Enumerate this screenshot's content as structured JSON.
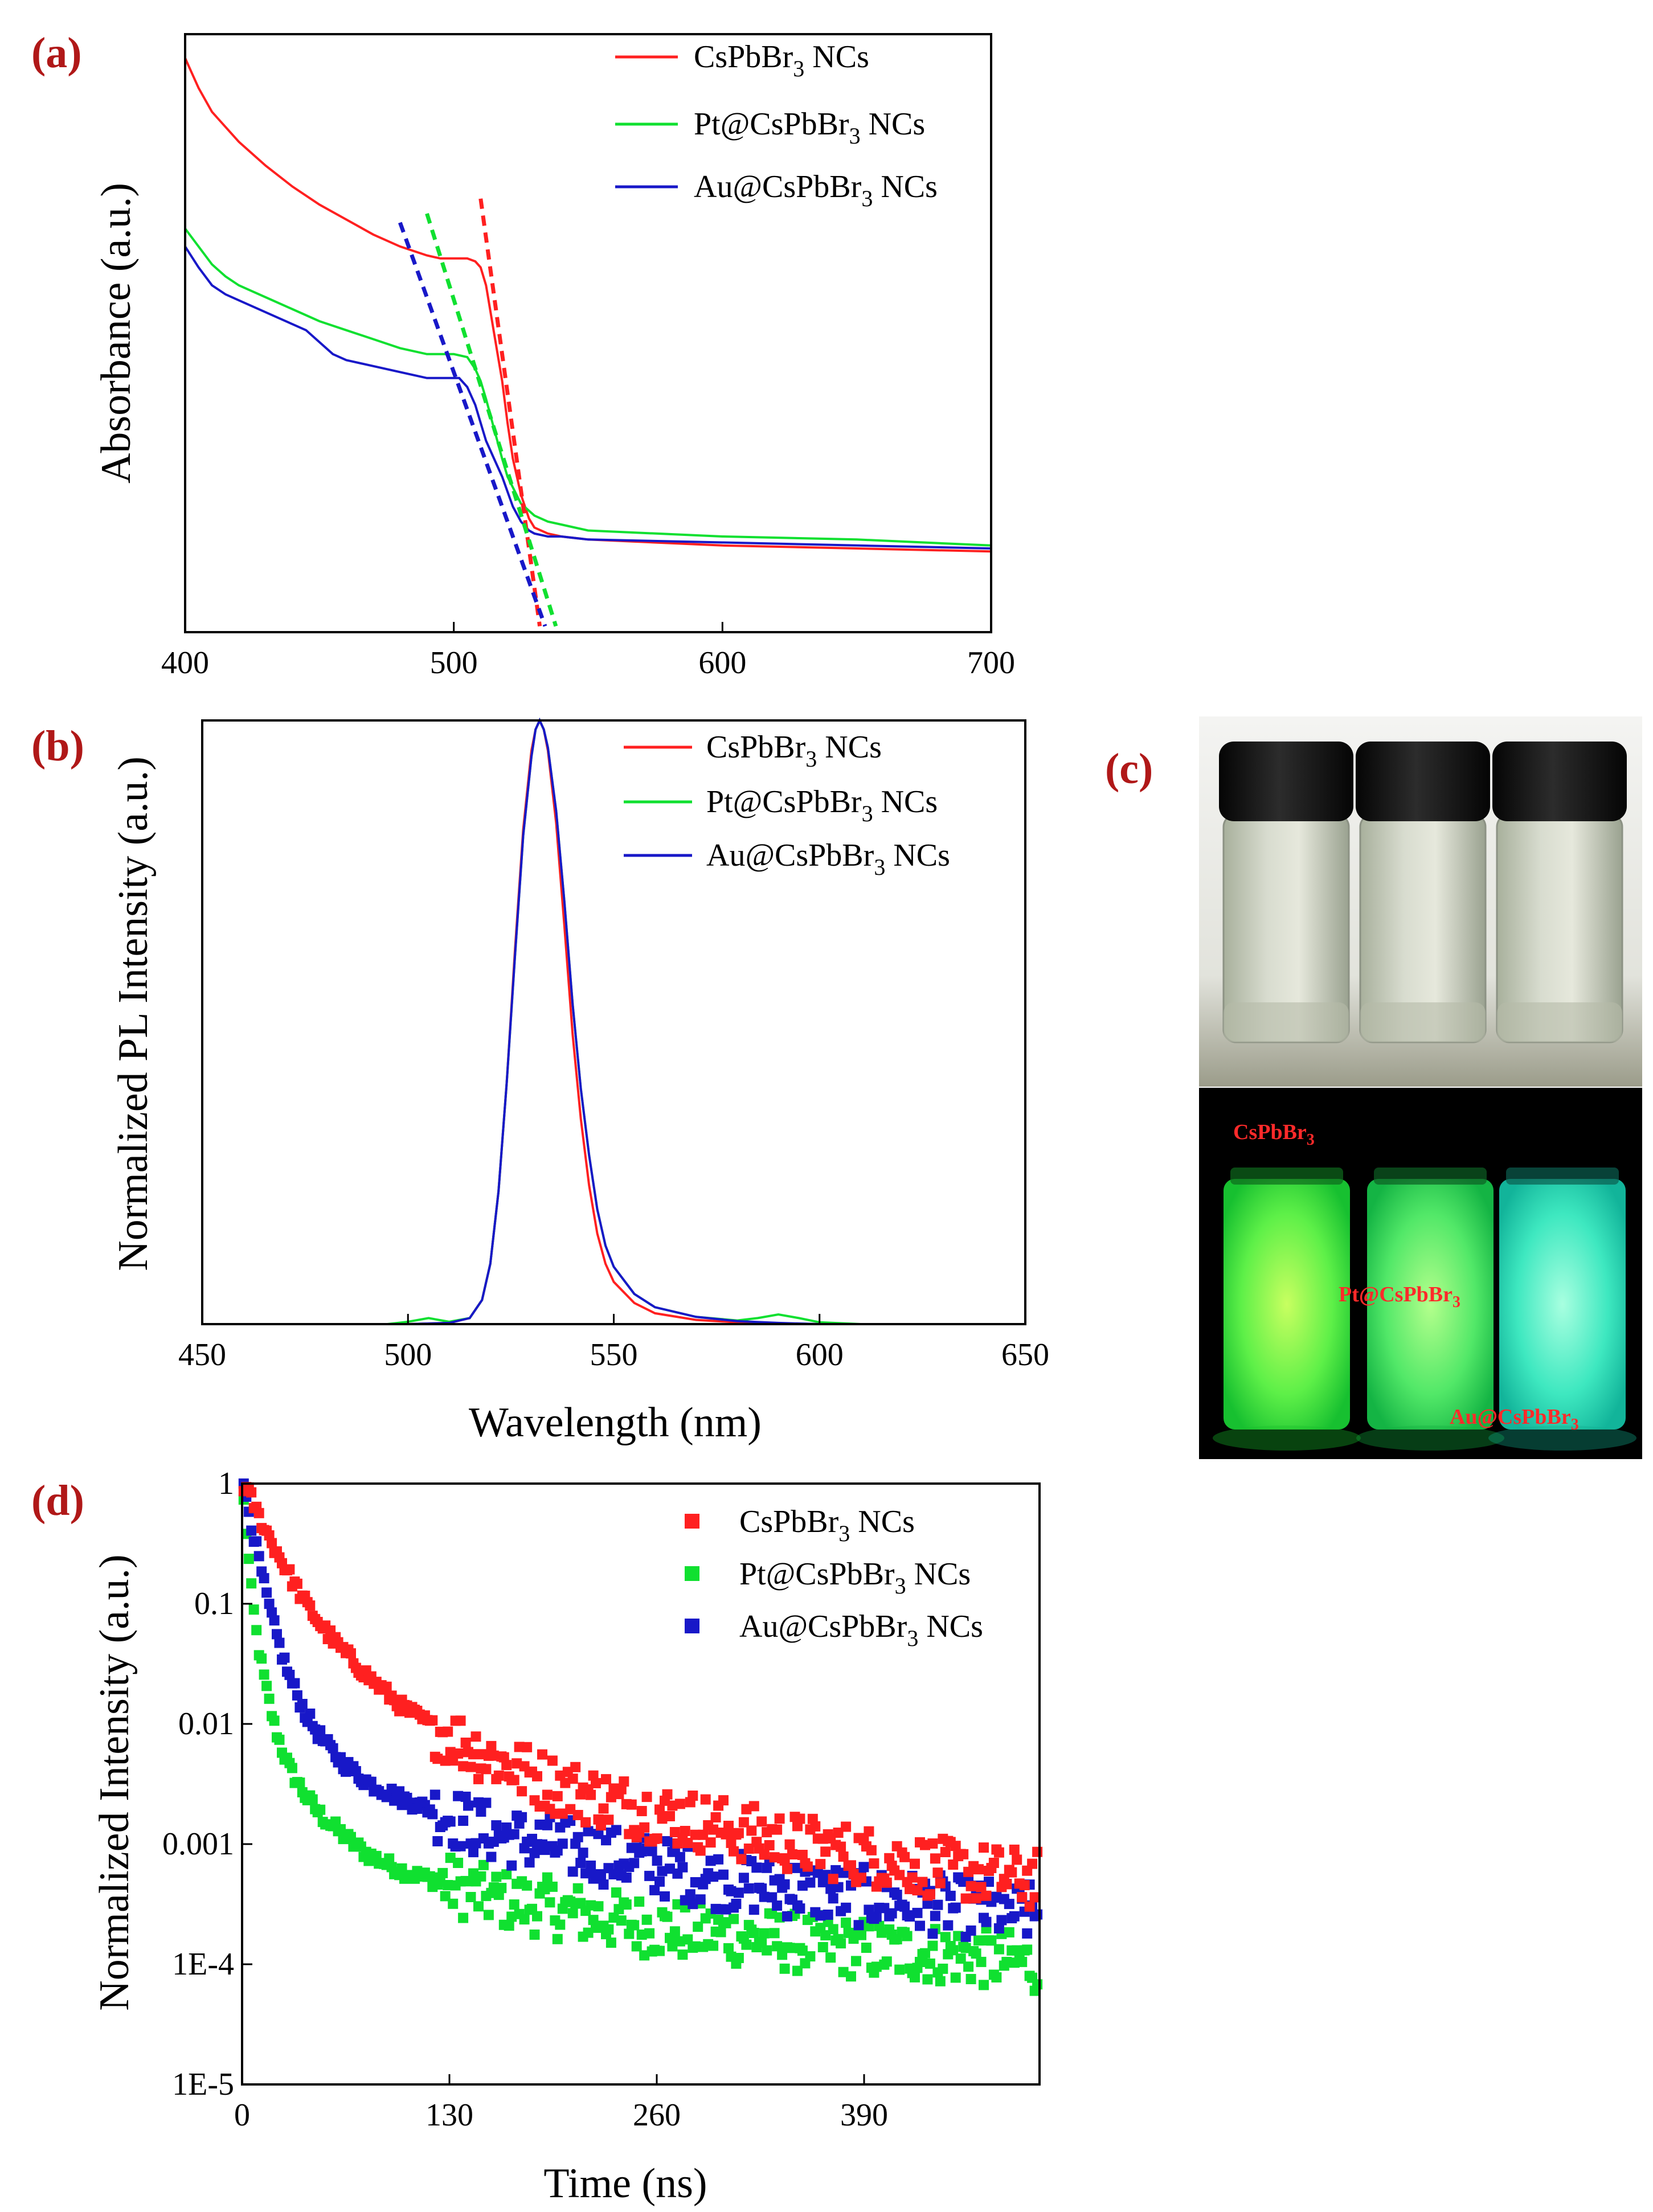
{
  "colors": {
    "red": "#ff2020",
    "green": "#10e030",
    "blue": "#1818c8",
    "panel_label": "#b01818"
  },
  "panels": {
    "a": "(a)",
    "b": "(b)",
    "c": "(c)",
    "d": "(d)"
  },
  "chart_data": [
    {
      "id": "a",
      "type": "line",
      "title": "",
      "xlabel": "",
      "ylabel": "Absorbance (a.u.)",
      "xlim": [
        400,
        700
      ],
      "ylim": [
        0,
        1
      ],
      "xticks": [
        "400",
        "500",
        "600",
        "700"
      ],
      "series": [
        {
          "name": "CsPbBr3 NCs",
          "color": "red",
          "x": [
            400,
            405,
            410,
            420,
            430,
            440,
            450,
            460,
            470,
            480,
            490,
            495,
            500,
            505,
            508,
            510,
            512,
            515,
            518,
            520,
            522,
            525,
            528,
            530,
            535,
            540,
            550,
            600,
            650,
            700
          ],
          "y": [
            0.96,
            0.91,
            0.87,
            0.82,
            0.78,
            0.745,
            0.715,
            0.69,
            0.665,
            0.645,
            0.63,
            0.625,
            0.625,
            0.625,
            0.62,
            0.61,
            0.58,
            0.5,
            0.42,
            0.35,
            0.29,
            0.23,
            0.19,
            0.175,
            0.165,
            0.16,
            0.155,
            0.145,
            0.14,
            0.135
          ]
        },
        {
          "name": "Pt@CsPbBr3 NCs",
          "color": "green",
          "x": [
            400,
            405,
            410,
            415,
            420,
            430,
            440,
            450,
            460,
            470,
            480,
            490,
            500,
            505,
            508,
            510,
            512,
            515,
            518,
            520,
            525,
            530,
            535,
            540,
            550,
            600,
            650,
            700
          ],
          "y": [
            0.675,
            0.645,
            0.615,
            0.595,
            0.58,
            0.56,
            0.54,
            0.52,
            0.505,
            0.49,
            0.475,
            0.465,
            0.465,
            0.46,
            0.44,
            0.42,
            0.39,
            0.34,
            0.29,
            0.26,
            0.215,
            0.195,
            0.185,
            0.18,
            0.17,
            0.16,
            0.155,
            0.145
          ]
        },
        {
          "name": "Au@CsPbBr3 NCs",
          "color": "blue",
          "x": [
            400,
            405,
            410,
            415,
            420,
            425,
            430,
            435,
            440,
            445,
            450,
            455,
            460,
            470,
            480,
            490,
            495,
            500,
            502,
            505,
            508,
            510,
            512,
            515,
            518,
            520,
            522,
            525,
            528,
            530,
            535,
            540,
            550,
            600,
            650,
            700
          ],
          "y": [
            0.645,
            0.61,
            0.58,
            0.565,
            0.555,
            0.545,
            0.535,
            0.525,
            0.515,
            0.505,
            0.485,
            0.465,
            0.455,
            0.445,
            0.435,
            0.425,
            0.425,
            0.425,
            0.425,
            0.41,
            0.38,
            0.35,
            0.32,
            0.29,
            0.26,
            0.235,
            0.21,
            0.185,
            0.17,
            0.165,
            0.16,
            0.16,
            0.155,
            0.15,
            0.145,
            0.14
          ]
        }
      ],
      "tangents": [
        {
          "color": "red",
          "x1": 510,
          "y1": 0.725,
          "x2": 532,
          "y2": 0.01
        },
        {
          "color": "green",
          "x1": 490,
          "y1": 0.7,
          "x2": 538,
          "y2": 0.01
        },
        {
          "color": "blue",
          "x1": 480,
          "y1": 0.685,
          "x2": 534,
          "y2": 0.01
        }
      ]
    },
    {
      "id": "b",
      "type": "line",
      "title": "",
      "xlabel": "Wavelength (nm)",
      "ylabel": "Normalized PL Intensity (a.u.)",
      "xlim": [
        450,
        650
      ],
      "ylim": [
        0,
        1
      ],
      "xticks": [
        "450",
        "500",
        "550",
        "600",
        "650"
      ],
      "series": [
        {
          "name": "CsPbBr3 NCs",
          "color": "red",
          "x": [
            450,
            500,
            510,
            515,
            518,
            520,
            522,
            524,
            526,
            528,
            530,
            531,
            532,
            533,
            534,
            536,
            538,
            540,
            542,
            544,
            546,
            548,
            550,
            555,
            560,
            570,
            580,
            590,
            600,
            650
          ],
          "y": [
            0,
            0,
            0.002,
            0.01,
            0.04,
            0.1,
            0.22,
            0.4,
            0.62,
            0.82,
            0.95,
            0.985,
            1.0,
            0.985,
            0.95,
            0.83,
            0.66,
            0.48,
            0.34,
            0.23,
            0.15,
            0.1,
            0.07,
            0.035,
            0.018,
            0.007,
            0.003,
            0.001,
            0,
            0
          ]
        },
        {
          "name": "Pt@CsPbBr3 NCs",
          "color": "green",
          "x": [
            450,
            495,
            500,
            505,
            510,
            515,
            518,
            520,
            522,
            524,
            526,
            528,
            530,
            531,
            532,
            533,
            534,
            536,
            538,
            540,
            542,
            544,
            546,
            548,
            550,
            555,
            560,
            570,
            580,
            585,
            590,
            595,
            600,
            610,
            650
          ],
          "y": [
            0,
            0,
            0.004,
            0.01,
            0.004,
            0.01,
            0.04,
            0.1,
            0.22,
            0.4,
            0.61,
            0.81,
            0.94,
            0.985,
            1.0,
            0.985,
            0.955,
            0.85,
            0.7,
            0.53,
            0.39,
            0.28,
            0.19,
            0.13,
            0.095,
            0.05,
            0.028,
            0.012,
            0.006,
            0.01,
            0.016,
            0.01,
            0.003,
            0,
            0
          ]
        },
        {
          "name": "Au@CsPbBr3 NCs",
          "color": "blue",
          "x": [
            450,
            500,
            510,
            515,
            518,
            520,
            522,
            524,
            526,
            528,
            530,
            531,
            532,
            533,
            534,
            536,
            538,
            540,
            542,
            544,
            546,
            548,
            550,
            555,
            560,
            570,
            580,
            590,
            600,
            650
          ],
          "y": [
            0,
            0,
            0.002,
            0.01,
            0.04,
            0.1,
            0.22,
            0.4,
            0.61,
            0.81,
            0.94,
            0.985,
            1.0,
            0.985,
            0.955,
            0.85,
            0.7,
            0.53,
            0.39,
            0.28,
            0.19,
            0.13,
            0.095,
            0.05,
            0.028,
            0.012,
            0.005,
            0.002,
            0,
            0
          ]
        }
      ]
    },
    {
      "id": "d",
      "type": "scatter",
      "title": "",
      "xlabel": "Time (ns)",
      "ylabel": "Normalized Intensity (a.u.)",
      "xlim": [
        0,
        500
      ],
      "yscale": "log",
      "ylim": [
        1e-05,
        1
      ],
      "xticks": [
        "0",
        "130",
        "260",
        "390"
      ],
      "yticks": [
        "1E-5",
        "1E-4",
        "0.001",
        "0.01",
        "0.1",
        "1"
      ],
      "series": [
        {
          "name": "CsPbBr3 NCs",
          "color": "red",
          "t": [
            0,
            5,
            10,
            20,
            30,
            40,
            50,
            60,
            80,
            100,
            120,
            140,
            160,
            180,
            200,
            230,
            260,
            290,
            320,
            350,
            390,
            430,
            470,
            500
          ],
          "y": [
            1,
            0.8,
            0.55,
            0.3,
            0.17,
            0.1,
            0.065,
            0.045,
            0.024,
            0.014,
            0.0095,
            0.0068,
            0.005,
            0.0038,
            0.003,
            0.0023,
            0.0018,
            0.0015,
            0.0012,
            0.001,
            0.0008,
            0.00065,
            0.00055,
            0.0005
          ]
        },
        {
          "name": "Pt@CsPbBr3 NCs",
          "color": "green",
          "t": [
            0,
            3,
            6,
            10,
            15,
            20,
            25,
            30,
            40,
            50,
            60,
            70,
            80,
            100,
            120,
            140,
            160,
            190,
            220,
            260,
            300,
            350,
            400,
            450,
            500
          ],
          "y": [
            1,
            0.35,
            0.12,
            0.045,
            0.02,
            0.01,
            0.0062,
            0.0042,
            0.0025,
            0.0017,
            0.0013,
            0.001,
            0.0008,
            0.0006,
            0.0005,
            0.00042,
            0.00035,
            0.0003,
            0.00025,
            0.0002,
            0.00018,
            0.00015,
            0.00013,
            0.00012,
            0.0001
          ]
        },
        {
          "name": "Au@CsPbBr3 NCs",
          "color": "blue",
          "t": [
            0,
            3,
            6,
            10,
            15,
            20,
            25,
            30,
            40,
            50,
            60,
            70,
            80,
            100,
            120,
            140,
            160,
            190,
            220,
            260,
            300,
            350,
            400,
            450,
            500
          ],
          "y": [
            1,
            0.75,
            0.45,
            0.25,
            0.12,
            0.065,
            0.038,
            0.024,
            0.012,
            0.0075,
            0.0052,
            0.004,
            0.0032,
            0.0024,
            0.0019,
            0.0015,
            0.0012,
            0.001,
            0.00085,
            0.00065,
            0.0005,
            0.00042,
            0.00035,
            0.0003,
            0.00026
          ]
        }
      ]
    }
  ],
  "legend": {
    "items": [
      {
        "prefix": "CsPbBr",
        "sub": "3",
        "suffix": " NCs"
      },
      {
        "prefix": "Pt@CsPbBr",
        "sub": "3",
        "suffix": " NCs"
      },
      {
        "prefix": "Au@CsPbBr",
        "sub": "3",
        "suffix": " NCs"
      }
    ]
  },
  "photo_c": {
    "vial_labels": [
      {
        "prefix": "CsPbBr",
        "sub": "3"
      },
      {
        "prefix": "Pt@CsPbBr",
        "sub": "3"
      },
      {
        "prefix": "Au@CsPbBr",
        "sub": "3"
      }
    ]
  }
}
